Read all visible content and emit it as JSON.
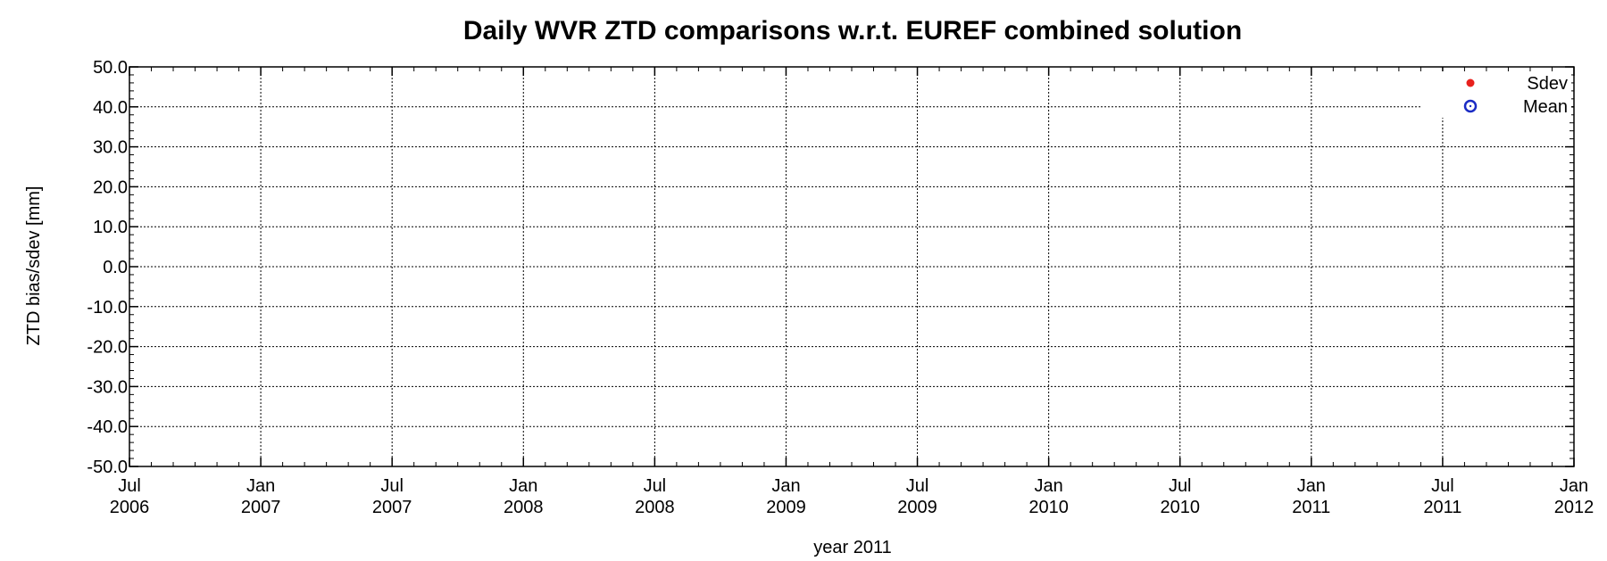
{
  "chart_data": {
    "type": "scatter",
    "title": "Daily WVR ZTD comparisons w.r.t. EUREF combined solution",
    "xlabel": "year 2011",
    "ylabel": "ZTD bias/sdev [mm]",
    "ylim": [
      -50.0,
      50.0
    ],
    "y_ticks": [
      "50.0",
      "40.0",
      "30.0",
      "20.0",
      "10.0",
      "0.0",
      "-10.0",
      "-20.0",
      "-30.0",
      "-40.0",
      "-50.0"
    ],
    "x_ticks": [
      {
        "month": "Jul",
        "year": "2006"
      },
      {
        "month": "Jan",
        "year": "2007"
      },
      {
        "month": "Jul",
        "year": "2007"
      },
      {
        "month": "Jan",
        "year": "2008"
      },
      {
        "month": "Jul",
        "year": "2008"
      },
      {
        "month": "Jan",
        "year": "2009"
      },
      {
        "month": "Jul",
        "year": "2009"
      },
      {
        "month": "Jan",
        "year": "2010"
      },
      {
        "month": "Jul",
        "year": "2010"
      },
      {
        "month": "Jan",
        "year": "2011"
      },
      {
        "month": "Jul",
        "year": "2011"
      },
      {
        "month": "Jan",
        "year": "2012"
      }
    ],
    "grid": true,
    "legend_position": "top-right",
    "series": [
      {
        "name": "Sdev",
        "marker": "filled-circle",
        "color": "#e8211d",
        "points": []
      },
      {
        "name": "Mean",
        "marker": "open-circle",
        "color": "#1a2bc4",
        "points": []
      }
    ]
  }
}
